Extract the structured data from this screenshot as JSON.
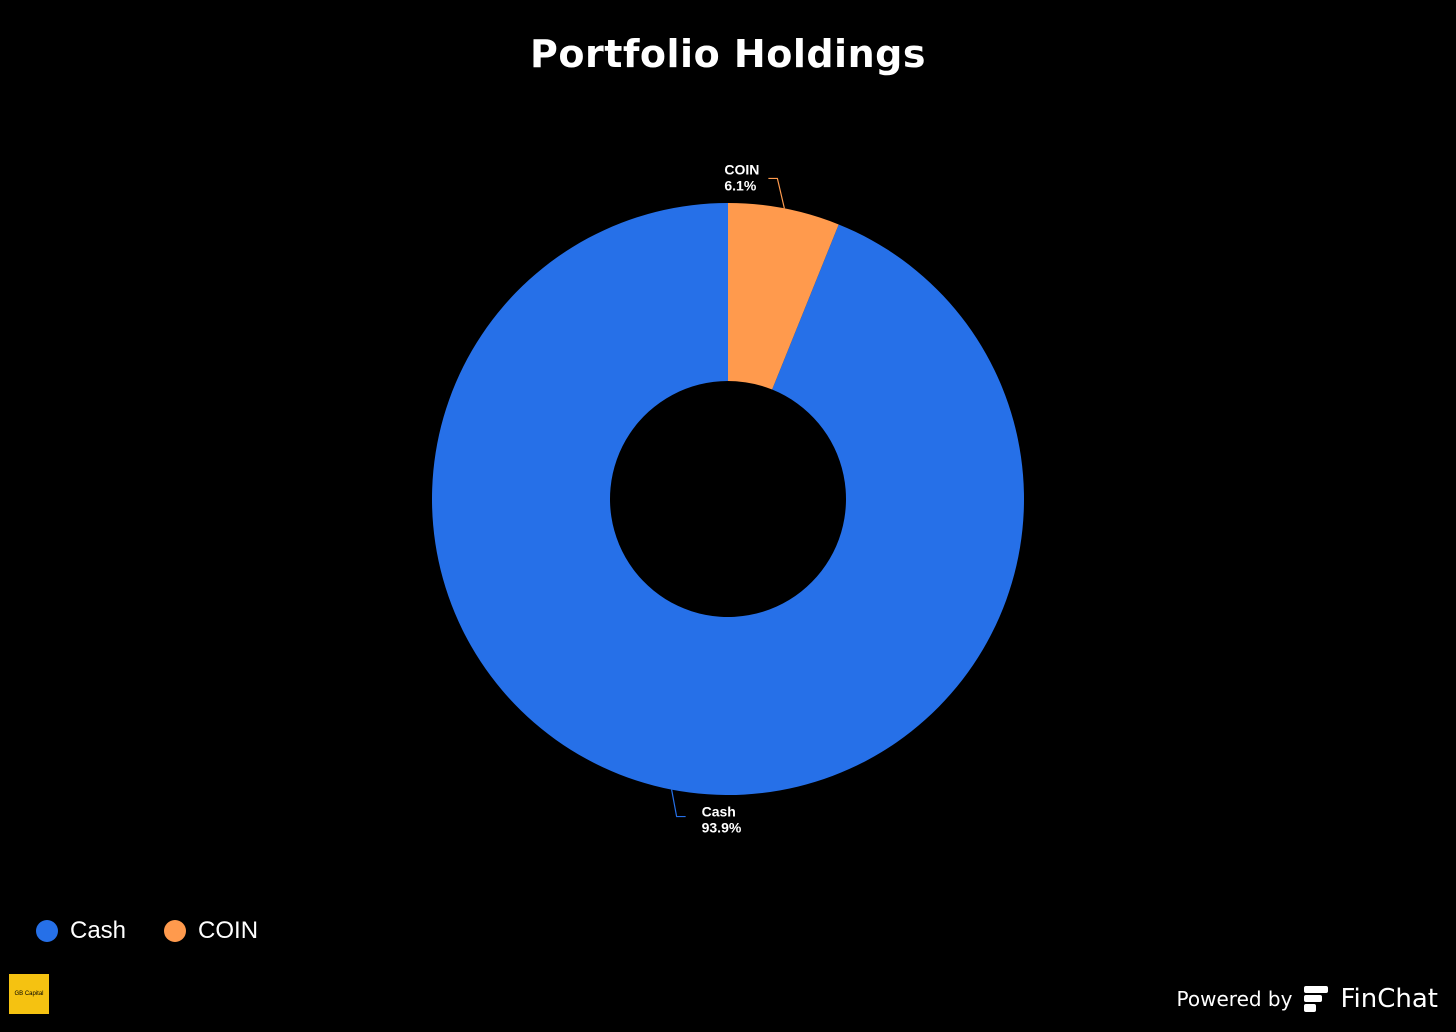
{
  "chart_data": {
    "type": "pie",
    "title": "Portfolio Holdings",
    "donut": true,
    "categories": [
      "Cash",
      "COIN"
    ],
    "values": [
      93.9,
      6.1
    ],
    "data_labels": [
      "93.9%",
      "6.1%"
    ],
    "colors": [
      "#2670e8",
      "#ff9a4d"
    ],
    "legend_position": "bottom-left"
  },
  "legend": {
    "items": [
      {
        "label": "Cash",
        "color": "#2670e8"
      },
      {
        "label": "COIN",
        "color": "#ff9a4d"
      }
    ]
  },
  "branding": {
    "logo_text": "GB Capital",
    "powered_by": "Powered by",
    "product_name": "FinChat",
    "icon": "finchat-icon"
  }
}
